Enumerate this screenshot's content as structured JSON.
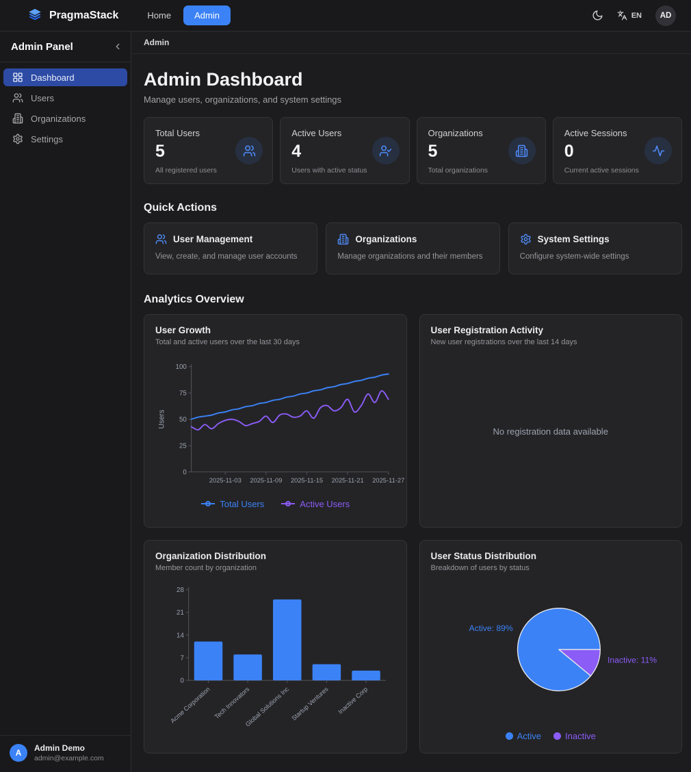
{
  "navbar": {
    "brand": "PragmaStack",
    "links": [
      {
        "label": "Home",
        "active": false
      },
      {
        "label": "Admin",
        "active": true
      }
    ],
    "language_code": "EN",
    "avatar_initials": "AD"
  },
  "sidebar": {
    "title": "Admin Panel",
    "collapse_icon": "chevron-left",
    "items": [
      {
        "label": "Dashboard",
        "icon": "dashboard-grid",
        "active": true
      },
      {
        "label": "Users",
        "icon": "users",
        "active": false
      },
      {
        "label": "Organizations",
        "icon": "building",
        "active": false
      },
      {
        "label": "Settings",
        "icon": "gear",
        "active": false
      }
    ],
    "user": {
      "initial": "A",
      "name": "Admin Demo",
      "email": "admin@example.com"
    }
  },
  "breadcrumb": "Admin",
  "page_header": {
    "title": "Admin Dashboard",
    "subtitle": "Manage users, organizations, and system settings"
  },
  "stats": [
    {
      "label": "Total Users",
      "value": "5",
      "description": "All registered users",
      "icon": "users"
    },
    {
      "label": "Active Users",
      "value": "4",
      "description": "Users with active status",
      "icon": "user-check"
    },
    {
      "label": "Organizations",
      "value": "5",
      "description": "Total organizations",
      "icon": "building"
    },
    {
      "label": "Active Sessions",
      "value": "0",
      "description": "Current active sessions",
      "icon": "activity"
    }
  ],
  "quick_actions": {
    "heading": "Quick Actions",
    "cards": [
      {
        "title": "User Management",
        "description": "View, create, and manage user accounts",
        "icon": "users"
      },
      {
        "title": "Organizations",
        "description": "Manage organizations and their members",
        "icon": "building"
      },
      {
        "title": "System Settings",
        "description": "Configure system-wide settings",
        "icon": "gear"
      }
    ]
  },
  "analytics": {
    "heading": "Analytics Overview",
    "registration_card": {
      "title": "User Registration Activity",
      "subtitle": "New user registrations over the last 14 days",
      "empty_message": "No registration data available"
    }
  },
  "colors": {
    "accent_blue": "#3b82f6",
    "accent_purple": "#8b5cf6",
    "axis_gray": "#9ca3af"
  },
  "chart_data": [
    {
      "type": "line",
      "title": "User Growth",
      "subtitle": "Total and active users over the last 30 days",
      "ylabel": "Users",
      "ylim": [
        0,
        100
      ],
      "y_ticks": [
        0,
        25,
        50,
        75,
        100
      ],
      "x_tick_labels": [
        "2025-11-03",
        "2025-11-09",
        "2025-11-15",
        "2025-11-21",
        "2025-11-27"
      ],
      "x_tick_indices": [
        5,
        11,
        17,
        23,
        29
      ],
      "n_points": 30,
      "grid": false,
      "legend_position": "bottom",
      "series": [
        {
          "name": "Total Users",
          "color": "#3b82f6",
          "values": [
            50,
            52,
            53,
            54,
            56,
            57,
            59,
            60,
            62,
            63,
            65,
            66,
            68,
            69,
            71,
            72,
            74,
            75,
            77,
            78,
            80,
            81,
            83,
            84,
            86,
            87,
            89,
            90,
            92,
            93
          ]
        },
        {
          "name": "Active Users",
          "color": "#8b5cf6",
          "values": [
            43,
            40,
            45,
            41,
            46,
            49,
            50,
            48,
            44,
            46,
            48,
            53,
            47,
            54,
            55,
            52,
            53,
            58,
            51,
            61,
            63,
            58,
            61,
            69,
            57,
            63,
            74,
            66,
            77,
            69
          ]
        }
      ]
    },
    {
      "type": "bar",
      "title": "Organization Distribution",
      "subtitle": "Member count by organization",
      "categories": [
        "Acme Corporation",
        "Tech Innovators",
        "Global Solutions Inc",
        "Startup Ventures",
        "Inactive Corp"
      ],
      "values": [
        12,
        8,
        25,
        5,
        3
      ],
      "ylim": [
        0,
        28
      ],
      "y_ticks": [
        0,
        7,
        14,
        21,
        28
      ],
      "bar_color": "#3b82f6",
      "grid": false
    },
    {
      "type": "pie",
      "title": "User Status Distribution",
      "subtitle": "Breakdown of users by status",
      "legend_position": "bottom",
      "slices": [
        {
          "label": "Active",
          "pct": 89,
          "color": "#3b82f6",
          "callout": "Active: 89%"
        },
        {
          "label": "Inactive",
          "pct": 11,
          "color": "#8b5cf6",
          "callout": "Inactive: 11%"
        }
      ]
    }
  ]
}
